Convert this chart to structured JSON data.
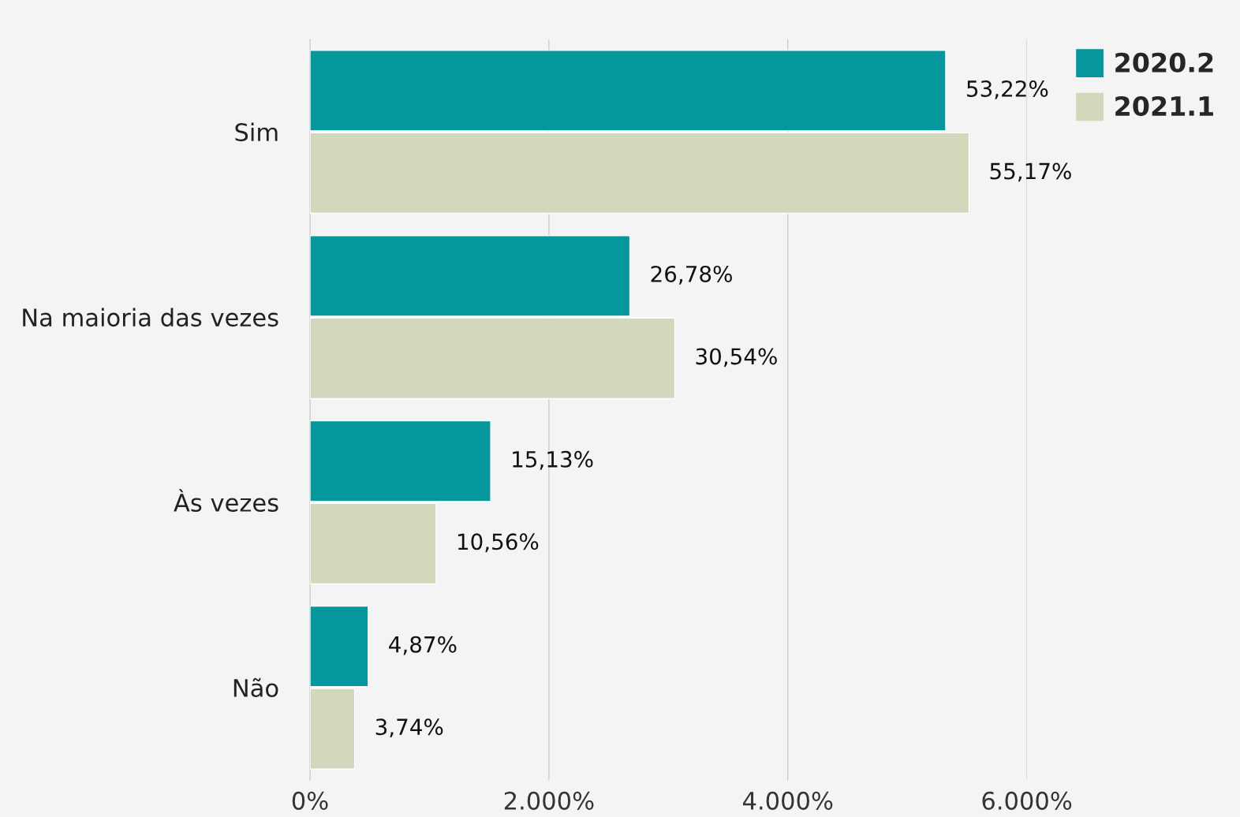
{
  "chart_data": {
    "type": "bar",
    "orientation": "horizontal",
    "categories": [
      "Sim",
      "Na maioria das vezes",
      "Às vezes",
      "Não"
    ],
    "series": [
      {
        "name": "2020.2",
        "color": "#05979c",
        "values": [
          53.22,
          26.78,
          15.13,
          4.87
        ],
        "value_labels": [
          "53,22%",
          "26,78%",
          "15,13%",
          "4,87%"
        ]
      },
      {
        "name": "2021.1",
        "color": "#d1d8bc",
        "values": [
          55.17,
          30.54,
          10.56,
          3.74
        ],
        "value_labels": [
          "55,17%",
          "30,54%",
          "10,56%",
          "3,74%"
        ]
      }
    ],
    "xlim": [
      0,
      60
    ],
    "xticks": [
      {
        "value": 0,
        "label": "0%"
      },
      {
        "value": 20,
        "label": "2.000%"
      },
      {
        "value": 40,
        "label": "4.000%"
      },
      {
        "value": 60,
        "label": "6.000%"
      }
    ],
    "grid": "x",
    "legend": "top right"
  }
}
